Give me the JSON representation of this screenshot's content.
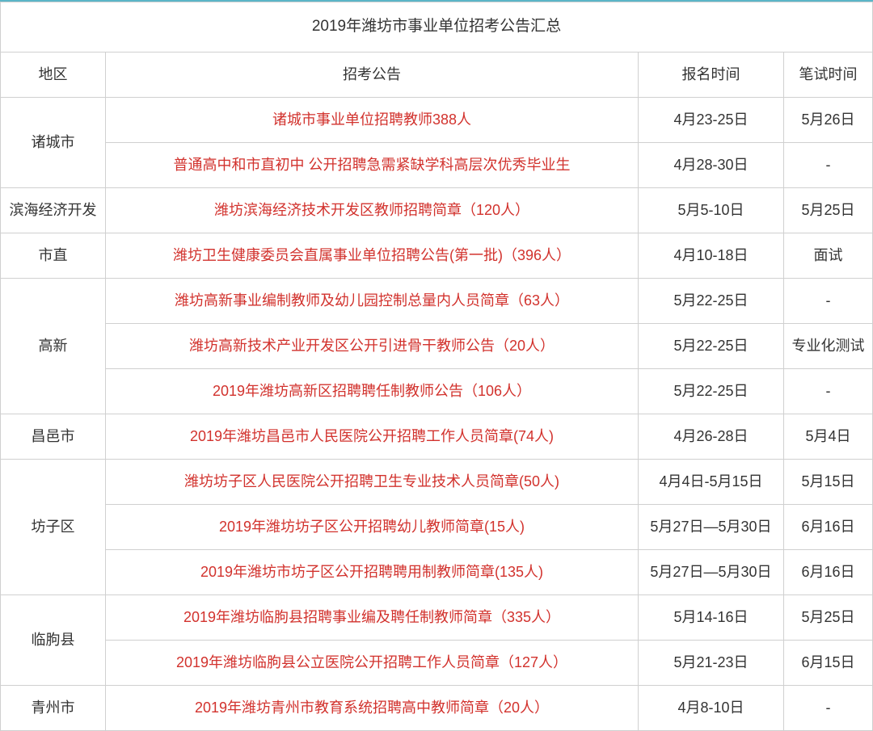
{
  "title": "2019年潍坊市事业单位招考公告汇总",
  "headers": {
    "region": "地区",
    "notice": "招考公告",
    "reg": "报名时间",
    "exam": "笔试时间"
  },
  "colors": {
    "border_top": "#5bb5c7",
    "cell_border": "#d0d0d0",
    "text_normal": "#333333",
    "text_link": "#d2322d",
    "background": "#ffffff"
  },
  "typography": {
    "base_fontsize": 18,
    "title_fontsize": 19,
    "font_family": "Microsoft YaHei"
  },
  "groups": [
    {
      "region": "诸城市",
      "rows": [
        {
          "notice": "诸城市事业单位招聘教师388人",
          "reg": "4月23-25日",
          "exam": "5月26日"
        },
        {
          "notice": "普通高中和市直初中 公开招聘急需紧缺学科高层次优秀毕业生",
          "reg": "4月28-30日",
          "exam": "-"
        }
      ]
    },
    {
      "region": "滨海经济开发",
      "rows": [
        {
          "notice": "潍坊滨海经济技术开发区教师招聘简章（120人）",
          "reg": "5月5-10日",
          "exam": "5月25日"
        }
      ]
    },
    {
      "region": "市直",
      "rows": [
        {
          "notice": "潍坊卫生健康委员会直属事业单位招聘公告(第一批)（396人）",
          "reg": "4月10-18日",
          "exam": "面试"
        }
      ]
    },
    {
      "region": "高新",
      "rows": [
        {
          "notice": "潍坊高新事业编制教师及幼儿园控制总量内人员简章（63人）",
          "reg": "5月22-25日",
          "exam": "-"
        },
        {
          "notice": "潍坊高新技术产业开发区公开引进骨干教师公告（20人）",
          "reg": "5月22-25日",
          "exam": "专业化测试"
        },
        {
          "notice": "2019年潍坊高新区招聘聘任制教师公告（106人）",
          "reg": "5月22-25日",
          "exam": "-"
        }
      ]
    },
    {
      "region": "昌邑市",
      "rows": [
        {
          "notice": "2019年潍坊昌邑市人民医院公开招聘工作人员简章(74人)",
          "reg": "4月26-28日",
          "exam": "5月4日"
        }
      ]
    },
    {
      "region": "坊子区",
      "rows": [
        {
          "notice": "潍坊坊子区人民医院公开招聘卫生专业技术人员简章(50人)",
          "reg": "4月4日-5月15日",
          "exam": "5月15日"
        },
        {
          "notice": "2019年潍坊坊子区公开招聘幼儿教师简章(15人)",
          "reg": "5月27日—5月30日",
          "exam": "6月16日"
        },
        {
          "notice": "2019年潍坊市坊子区公开招聘聘用制教师简章(135人)",
          "reg": "5月27日—5月30日",
          "exam": "6月16日"
        }
      ]
    },
    {
      "region": "临朐县",
      "rows": [
        {
          "notice": "2019年潍坊临朐县招聘事业编及聘任制教师简章（335人）",
          "reg": "5月14-16日",
          "exam": "5月25日"
        },
        {
          "notice": "2019年潍坊临朐县公立医院公开招聘工作人员简章（127人）",
          "reg": "5月21-23日",
          "exam": "6月15日"
        }
      ]
    },
    {
      "region": "青州市",
      "rows": [
        {
          "notice": "2019年潍坊青州市教育系统招聘高中教师简章（20人）",
          "reg": "4月8-10日",
          "exam": "-"
        }
      ]
    }
  ]
}
